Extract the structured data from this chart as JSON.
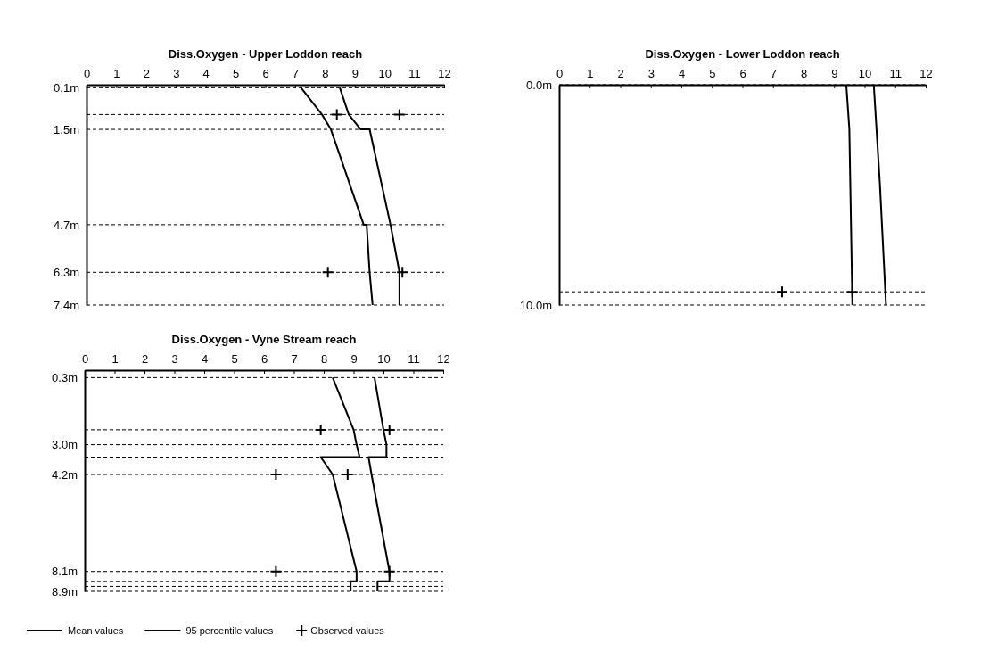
{
  "chart_data": [
    {
      "type": "line",
      "title": "Diss.Oxygen - Upper Loddon reach",
      "xlim": [
        0,
        12
      ],
      "xticks": [
        0,
        1,
        2,
        3,
        4,
        5,
        6,
        7,
        8,
        9,
        10,
        11,
        12
      ],
      "ylim": [
        7.4,
        0
      ],
      "yticks": [
        {
          "value": 0.1,
          "label": "0.1m"
        },
        {
          "value": 1.5,
          "label": "1.5m"
        },
        {
          "value": 4.7,
          "label": "4.7m"
        },
        {
          "value": 6.3,
          "label": "6.3m"
        },
        {
          "value": 7.4,
          "label": "7.4m"
        }
      ],
      "grid": "y",
      "legend": false,
      "ref_lines": [
        {
          "axis": "y",
          "value": 1.0,
          "line_style": "dashed"
        }
      ],
      "series": [
        {
          "type": "line",
          "color": "#000000",
          "marker": "none",
          "x": [
            7.2,
            7.9,
            8.2,
            9.3,
            9.4,
            9.5,
            9.6
          ],
          "values": [
            0.1,
            1.0,
            1.5,
            4.7,
            4.7,
            6.3,
            7.4
          ]
        },
        {
          "type": "line",
          "color": "#000000",
          "marker": "none",
          "x": [
            8.5,
            8.8,
            9.2,
            9.5,
            10.2,
            10.5,
            10.5
          ],
          "values": [
            0.1,
            1.0,
            1.5,
            1.5,
            4.7,
            6.3,
            7.4
          ]
        },
        {
          "type": "scatter",
          "color": "#000000",
          "marker": "cross",
          "x": [
            8.4,
            10.5,
            8.1,
            10.6
          ],
          "values": [
            1.0,
            1.0,
            6.3,
            6.3
          ]
        }
      ]
    },
    {
      "type": "line",
      "title": "Diss.Oxygen - Lower Loddon reach",
      "xlim": [
        0,
        12
      ],
      "xticks": [
        0,
        1,
        2,
        3,
        4,
        5,
        6,
        7,
        8,
        9,
        10,
        11,
        12
      ],
      "ylim": [
        10,
        0
      ],
      "yticks": [
        {
          "value": 0,
          "label": "0.0m"
        },
        {
          "value": 10,
          "label": "10.0m"
        }
      ],
      "grid": "y",
      "legend": false,
      "ref_lines": [
        {
          "axis": "y",
          "value": 9.4,
          "line_style": "dashed"
        }
      ],
      "series": [
        {
          "type": "line",
          "color": "#000000",
          "marker": "none",
          "x": [
            9.4,
            9.5,
            9.6
          ],
          "values": [
            0,
            2.0,
            10
          ]
        },
        {
          "type": "line",
          "color": "#000000",
          "marker": "none",
          "x": [
            10.3,
            10.5,
            10.7
          ],
          "values": [
            0,
            4.5,
            10
          ]
        },
        {
          "type": "scatter",
          "color": "#000000",
          "marker": "cross",
          "x": [
            7.3,
            9.6
          ],
          "values": [
            9.4,
            9.4
          ]
        }
      ]
    },
    {
      "type": "line",
      "title": "Diss.Oxygen - Vyne Stream reach",
      "xlim": [
        0,
        12
      ],
      "xticks": [
        0,
        1,
        2,
        3,
        4,
        5,
        6,
        7,
        8,
        9,
        10,
        11,
        12
      ],
      "ylim": [
        8.9,
        0
      ],
      "yticks": [
        {
          "value": 0.3,
          "label": "0.3m"
        },
        {
          "value": 3.0,
          "label": "3.0m"
        },
        {
          "value": 4.2,
          "label": "4.2m"
        },
        {
          "value": 8.1,
          "label": "8.1m"
        },
        {
          "value": 8.9,
          "label": "8.9m"
        }
      ],
      "grid": "y",
      "legend": "bottom",
      "ref_lines": [
        {
          "axis": "y",
          "value": 2.4,
          "line_style": "dashed"
        },
        {
          "axis": "y",
          "value": 3.5,
          "line_style": "dashed"
        },
        {
          "axis": "y",
          "value": 8.5,
          "line_style": "dashed"
        },
        {
          "axis": "y",
          "value": 8.7,
          "line_style": "dashed"
        }
      ],
      "series": [
        {
          "type": "line",
          "name": "Mean values",
          "color": "#000000",
          "marker": "none",
          "x": [
            8.3,
            9.0,
            9.1,
            9.2,
            7.9,
            8.3,
            9.1,
            9.1,
            8.9,
            8.9
          ],
          "values": [
            0.3,
            2.4,
            3.0,
            3.5,
            3.5,
            4.2,
            8.1,
            8.5,
            8.5,
            8.9
          ]
        },
        {
          "type": "line",
          "name": "95 percentile values",
          "color": "#000000",
          "marker": "none",
          "x": [
            9.7,
            10.0,
            10.1,
            10.1,
            9.5,
            9.6,
            10.2,
            10.2,
            9.8,
            9.8
          ],
          "values": [
            0.3,
            2.4,
            3.0,
            3.5,
            3.5,
            4.2,
            8.1,
            8.5,
            8.5,
            8.9
          ]
        },
        {
          "type": "scatter",
          "name": "Observed values",
          "color": "#000000",
          "marker": "cross",
          "x": [
            7.9,
            10.2,
            6.4,
            8.8,
            6.4,
            10.2
          ],
          "values": [
            2.4,
            2.4,
            4.2,
            4.2,
            8.1,
            8.1
          ]
        }
      ]
    }
  ]
}
